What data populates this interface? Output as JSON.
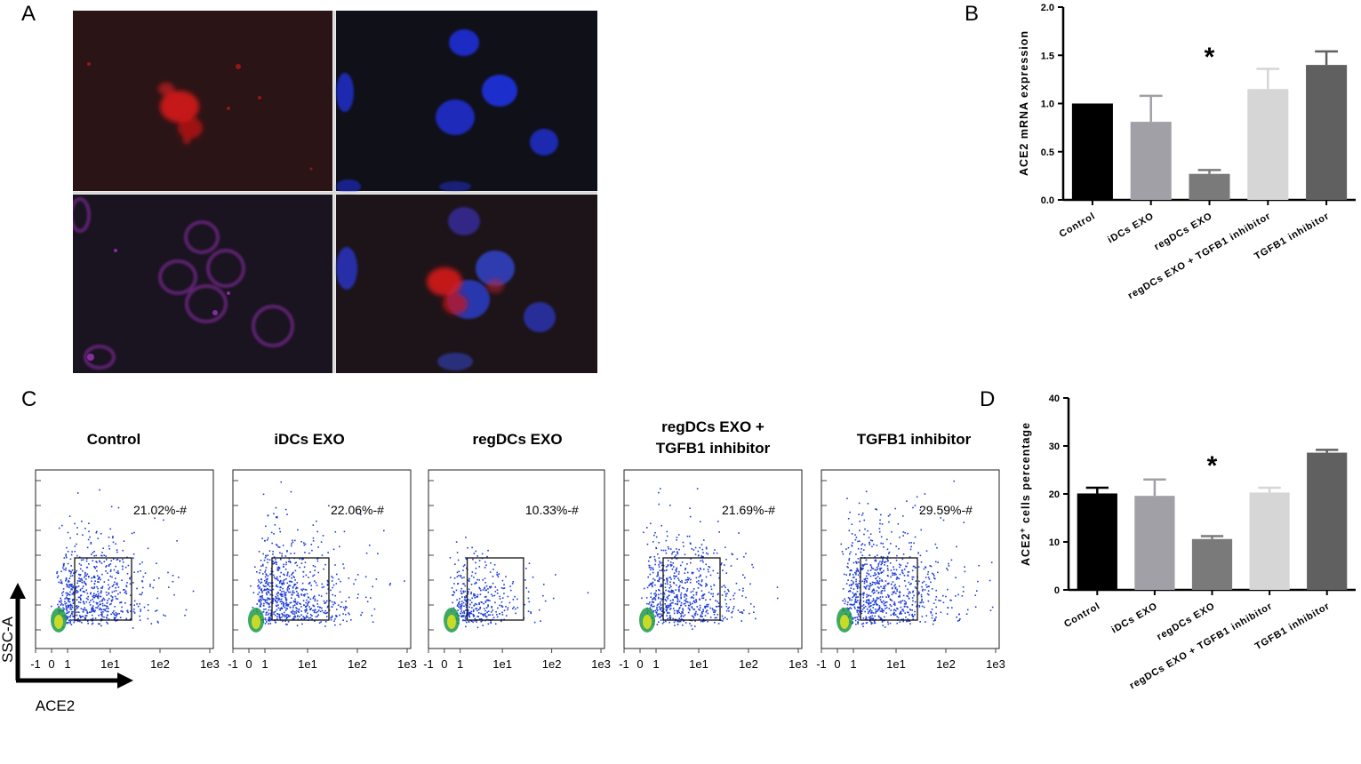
{
  "panels": {
    "a": "A",
    "b": "B",
    "c": "C",
    "d": "D"
  },
  "micro": {
    "colors": {
      "red": "#e01818",
      "blue": "#1f2fd6",
      "magenta": "#b23ad0",
      "bg": "#141416",
      "divider": "#d8d8d8"
    }
  },
  "chart_data": [
    {
      "type": "bar",
      "panel": "B",
      "categories": [
        "Control",
        "iDCs EXO",
        "regDCs EXO",
        "regDCs EXO + TGFB1 inhibitor",
        "TGFB1 inhibitor"
      ],
      "values": [
        1.0,
        0.81,
        0.27,
        1.15,
        1.4
      ],
      "errors": [
        0,
        0.27,
        0.04,
        0.21,
        0.14
      ],
      "colors": [
        "#000000",
        "#a0a0a6",
        "#7a7a7a",
        "#d6d6d6",
        "#606060"
      ],
      "ylabel": "ACE2 mRNA expression",
      "ylim": [
        0,
        2.0
      ],
      "yticks": [
        "0.0",
        "0.5",
        "1.0",
        "1.5",
        "2.0"
      ],
      "annotation": "*",
      "annotation_index": 2
    },
    {
      "type": "bar",
      "panel": "D",
      "categories": [
        "Control",
        "iDCs EXO",
        "regDCs EXO",
        "regDCs EXO + TGFB1 inhibitor",
        "TGFB1 inhibitor"
      ],
      "values": [
        20.1,
        19.6,
        10.6,
        20.3,
        28.6
      ],
      "errors": [
        1.2,
        3.4,
        0.6,
        1.0,
        0.6
      ],
      "colors": [
        "#000000",
        "#a0a0a6",
        "#7a7a7a",
        "#d6d6d6",
        "#606060"
      ],
      "ylabel_main": "ACE2",
      "ylabel_sup": "+",
      "ylabel_rest": " cells percentage",
      "ylim": [
        0,
        40
      ],
      "yticks": [
        "0",
        "10",
        "20",
        "30",
        "40"
      ],
      "annotation": "*",
      "annotation_index": 2
    },
    {
      "type": "scatter",
      "panel": "C",
      "xlabel": "ACE2",
      "ylabel": "SSC-A",
      "xticks": [
        "-1",
        "0",
        "1",
        "1e1",
        "1e2",
        "1e3"
      ],
      "plots": [
        {
          "title": [
            "Control"
          ],
          "gate_label": "21.02%-#",
          "count": 700
        },
        {
          "title": [
            "iDCs EXO"
          ],
          "gate_label": "22.06%-#",
          "count": 750
        },
        {
          "title": [
            "regDCs EXO"
          ],
          "gate_label": "10.33%-#",
          "count": 380
        },
        {
          "title": [
            "regDCs EXO +",
            "TGFB1 inhibitor"
          ],
          "gate_label": "21.69%-#",
          "count": 700
        },
        {
          "title": [
            "TGFB1 inhibitor"
          ],
          "gate_label": "29.59%-#",
          "count": 850
        }
      ]
    }
  ]
}
